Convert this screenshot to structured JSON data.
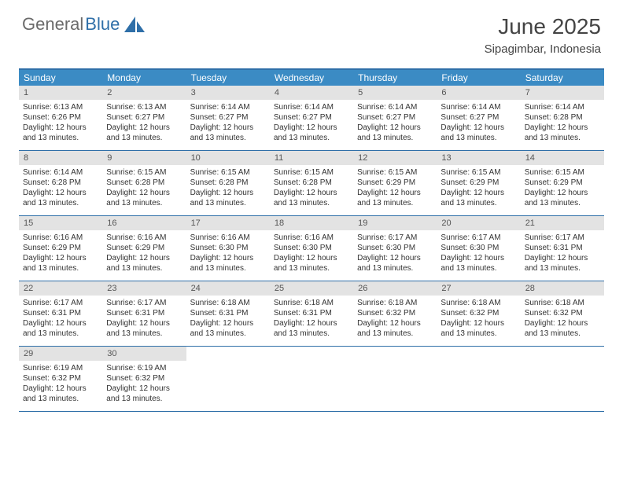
{
  "brand": {
    "part1": "General",
    "part2": "Blue"
  },
  "title": "June 2025",
  "location": "Sipagimbar, Indonesia",
  "colors": {
    "header_bg": "#3b8bc4",
    "border": "#2f6fa8",
    "daynum_bg": "#e3e3e3",
    "text": "#333333"
  },
  "weekdays": [
    "Sunday",
    "Monday",
    "Tuesday",
    "Wednesday",
    "Thursday",
    "Friday",
    "Saturday"
  ],
  "weeks": [
    [
      {
        "n": "1",
        "sr": "6:13 AM",
        "ss": "6:26 PM",
        "dl": "12 hours and 13 minutes."
      },
      {
        "n": "2",
        "sr": "6:13 AM",
        "ss": "6:27 PM",
        "dl": "12 hours and 13 minutes."
      },
      {
        "n": "3",
        "sr": "6:14 AM",
        "ss": "6:27 PM",
        "dl": "12 hours and 13 minutes."
      },
      {
        "n": "4",
        "sr": "6:14 AM",
        "ss": "6:27 PM",
        "dl": "12 hours and 13 minutes."
      },
      {
        "n": "5",
        "sr": "6:14 AM",
        "ss": "6:27 PM",
        "dl": "12 hours and 13 minutes."
      },
      {
        "n": "6",
        "sr": "6:14 AM",
        "ss": "6:27 PM",
        "dl": "12 hours and 13 minutes."
      },
      {
        "n": "7",
        "sr": "6:14 AM",
        "ss": "6:28 PM",
        "dl": "12 hours and 13 minutes."
      }
    ],
    [
      {
        "n": "8",
        "sr": "6:14 AM",
        "ss": "6:28 PM",
        "dl": "12 hours and 13 minutes."
      },
      {
        "n": "9",
        "sr": "6:15 AM",
        "ss": "6:28 PM",
        "dl": "12 hours and 13 minutes."
      },
      {
        "n": "10",
        "sr": "6:15 AM",
        "ss": "6:28 PM",
        "dl": "12 hours and 13 minutes."
      },
      {
        "n": "11",
        "sr": "6:15 AM",
        "ss": "6:28 PM",
        "dl": "12 hours and 13 minutes."
      },
      {
        "n": "12",
        "sr": "6:15 AM",
        "ss": "6:29 PM",
        "dl": "12 hours and 13 minutes."
      },
      {
        "n": "13",
        "sr": "6:15 AM",
        "ss": "6:29 PM",
        "dl": "12 hours and 13 minutes."
      },
      {
        "n": "14",
        "sr": "6:15 AM",
        "ss": "6:29 PM",
        "dl": "12 hours and 13 minutes."
      }
    ],
    [
      {
        "n": "15",
        "sr": "6:16 AM",
        "ss": "6:29 PM",
        "dl": "12 hours and 13 minutes."
      },
      {
        "n": "16",
        "sr": "6:16 AM",
        "ss": "6:29 PM",
        "dl": "12 hours and 13 minutes."
      },
      {
        "n": "17",
        "sr": "6:16 AM",
        "ss": "6:30 PM",
        "dl": "12 hours and 13 minutes."
      },
      {
        "n": "18",
        "sr": "6:16 AM",
        "ss": "6:30 PM",
        "dl": "12 hours and 13 minutes."
      },
      {
        "n": "19",
        "sr": "6:17 AM",
        "ss": "6:30 PM",
        "dl": "12 hours and 13 minutes."
      },
      {
        "n": "20",
        "sr": "6:17 AM",
        "ss": "6:30 PM",
        "dl": "12 hours and 13 minutes."
      },
      {
        "n": "21",
        "sr": "6:17 AM",
        "ss": "6:31 PM",
        "dl": "12 hours and 13 minutes."
      }
    ],
    [
      {
        "n": "22",
        "sr": "6:17 AM",
        "ss": "6:31 PM",
        "dl": "12 hours and 13 minutes."
      },
      {
        "n": "23",
        "sr": "6:17 AM",
        "ss": "6:31 PM",
        "dl": "12 hours and 13 minutes."
      },
      {
        "n": "24",
        "sr": "6:18 AM",
        "ss": "6:31 PM",
        "dl": "12 hours and 13 minutes."
      },
      {
        "n": "25",
        "sr": "6:18 AM",
        "ss": "6:31 PM",
        "dl": "12 hours and 13 minutes."
      },
      {
        "n": "26",
        "sr": "6:18 AM",
        "ss": "6:32 PM",
        "dl": "12 hours and 13 minutes."
      },
      {
        "n": "27",
        "sr": "6:18 AM",
        "ss": "6:32 PM",
        "dl": "12 hours and 13 minutes."
      },
      {
        "n": "28",
        "sr": "6:18 AM",
        "ss": "6:32 PM",
        "dl": "12 hours and 13 minutes."
      }
    ],
    [
      {
        "n": "29",
        "sr": "6:19 AM",
        "ss": "6:32 PM",
        "dl": "12 hours and 13 minutes."
      },
      {
        "n": "30",
        "sr": "6:19 AM",
        "ss": "6:32 PM",
        "dl": "12 hours and 13 minutes."
      },
      {
        "empty": true
      },
      {
        "empty": true
      },
      {
        "empty": true
      },
      {
        "empty": true
      },
      {
        "empty": true
      }
    ]
  ],
  "labels": {
    "sunrise": "Sunrise:",
    "sunset": "Sunset:",
    "daylight": "Daylight:"
  }
}
